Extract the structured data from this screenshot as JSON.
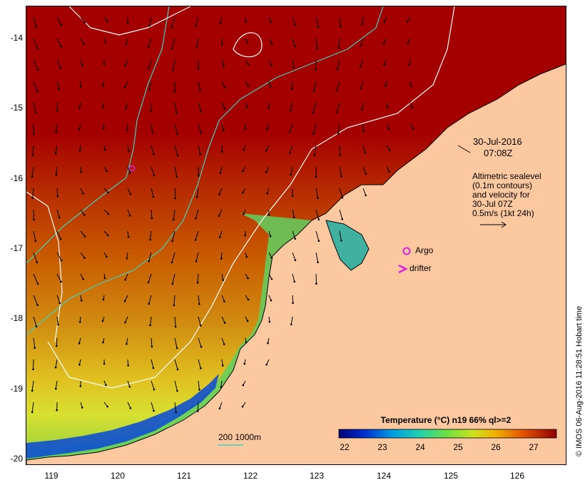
{
  "y_ticks": [
    "-14",
    "-15",
    "-16",
    "-17",
    "-18",
    "-19",
    "-20"
  ],
  "x_ticks": [
    "119",
    "120",
    "121",
    "122",
    "123",
    "124",
    "125",
    "126"
  ],
  "datetime": {
    "date": "30-Jul-2016",
    "time": "07:08Z"
  },
  "legend_text": {
    "line1": "Altimetric sealevel",
    "line2": "(0.1m contours)",
    "line3": "and velocity for",
    "line4": "30-Jul 07Z",
    "line5": "0.5m/s (1kt 24h)"
  },
  "argo_label": "Argo",
  "drifter_label": "drifter",
  "depth_label": "200  1000m",
  "colorbar": {
    "title": "Temperature (°C) n19 66% ql>=2",
    "ticks": [
      "22",
      "23",
      "24",
      "25",
      "26",
      "27"
    ]
  },
  "credit": "© IMOS 06-Aug-2016 11:28:51 Hobart time",
  "colors": {
    "land": "#fcc8a0",
    "warm": "#a50000",
    "contour_200": "#40d0c0",
    "contour_1000": "#ffffff",
    "argo": "#e020e0"
  }
}
